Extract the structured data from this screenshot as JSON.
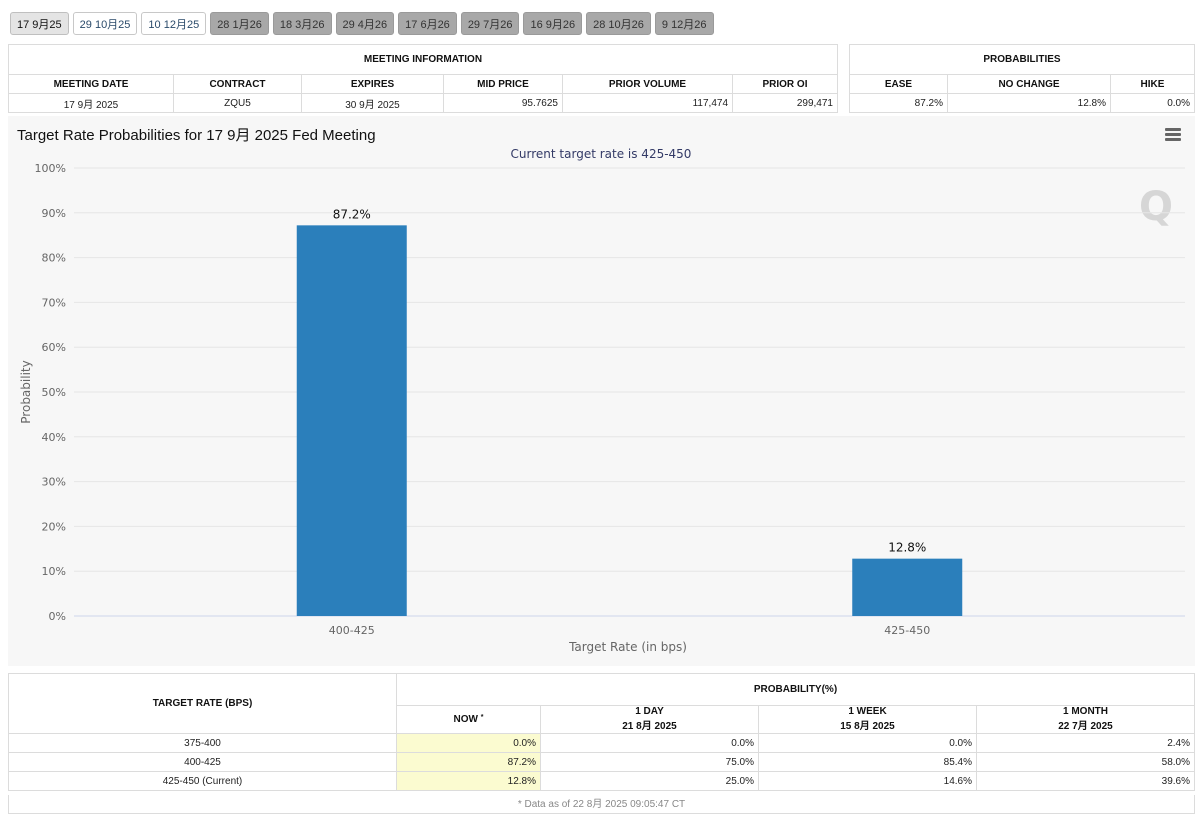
{
  "tabs": [
    {
      "label": "17 9月25",
      "state": "active"
    },
    {
      "label": "29 10月25",
      "state": "light"
    },
    {
      "label": "10 12月25",
      "state": "light"
    },
    {
      "label": "28 1月26",
      "state": "dark"
    },
    {
      "label": "18 3月26",
      "state": "dark"
    },
    {
      "label": "29 4月26",
      "state": "dark"
    },
    {
      "label": "17 6月26",
      "state": "dark"
    },
    {
      "label": "29 7月26",
      "state": "dark"
    },
    {
      "label": "16 9月26",
      "state": "dark"
    },
    {
      "label": "28 10月26",
      "state": "dark"
    },
    {
      "label": "9 12月26",
      "state": "dark"
    }
  ],
  "meeting_info": {
    "title": "MEETING INFORMATION",
    "headers": [
      "MEETING DATE",
      "CONTRACT",
      "EXPIRES",
      "MID PRICE",
      "PRIOR VOLUME",
      "PRIOR OI"
    ],
    "row": [
      "17 9月 2025",
      "ZQU5",
      "30 9月 2025",
      "95.7625",
      "117,474",
      "299,471"
    ]
  },
  "probabilities": {
    "title": "PROBABILITIES",
    "headers": [
      "EASE",
      "NO CHANGE",
      "HIKE"
    ],
    "row": [
      "87.2%",
      "12.8%",
      "0.0%"
    ]
  },
  "chart_data": {
    "type": "bar",
    "title": "Target Rate Probabilities for 17 9月 2025 Fed Meeting",
    "subtitle": "Current target rate is 425-450",
    "xlabel": "Target Rate (in bps)",
    "ylabel": "Probability",
    "categories": [
      "400-425",
      "425-450"
    ],
    "values": [
      87.2,
      12.8
    ],
    "data_labels": [
      "87.2%",
      "12.8%"
    ],
    "ylim": [
      0,
      100
    ],
    "yticks": [
      "0%",
      "10%",
      "20%",
      "30%",
      "40%",
      "50%",
      "60%",
      "70%",
      "80%",
      "90%",
      "100%"
    ],
    "grid": true,
    "bar_color": "#2b7fbb"
  },
  "watermark": "Q",
  "rate_table": {
    "col_target": "TARGET RATE (BPS)",
    "col_prob": "PROBABILITY(%)",
    "sub_headers": [
      {
        "line1": "NOW",
        "line2": ""
      },
      {
        "line1": "1 DAY",
        "line2": "21 8月 2025"
      },
      {
        "line1": "1 WEEK",
        "line2": "15 8月 2025"
      },
      {
        "line1": "1 MONTH",
        "line2": "22 7月 2025"
      }
    ],
    "now_mark": "*",
    "rows": [
      {
        "rate": "375-400",
        "values": [
          "0.0%",
          "0.0%",
          "0.0%",
          "2.4%"
        ]
      },
      {
        "rate": "400-425",
        "values": [
          "87.2%",
          "75.0%",
          "85.4%",
          "58.0%"
        ]
      },
      {
        "rate": "425-450 (Current)",
        "values": [
          "12.8%",
          "25.0%",
          "14.6%",
          "39.6%"
        ]
      }
    ],
    "note": "* Data as of 22 8月 2025 09:05:47 CT"
  }
}
